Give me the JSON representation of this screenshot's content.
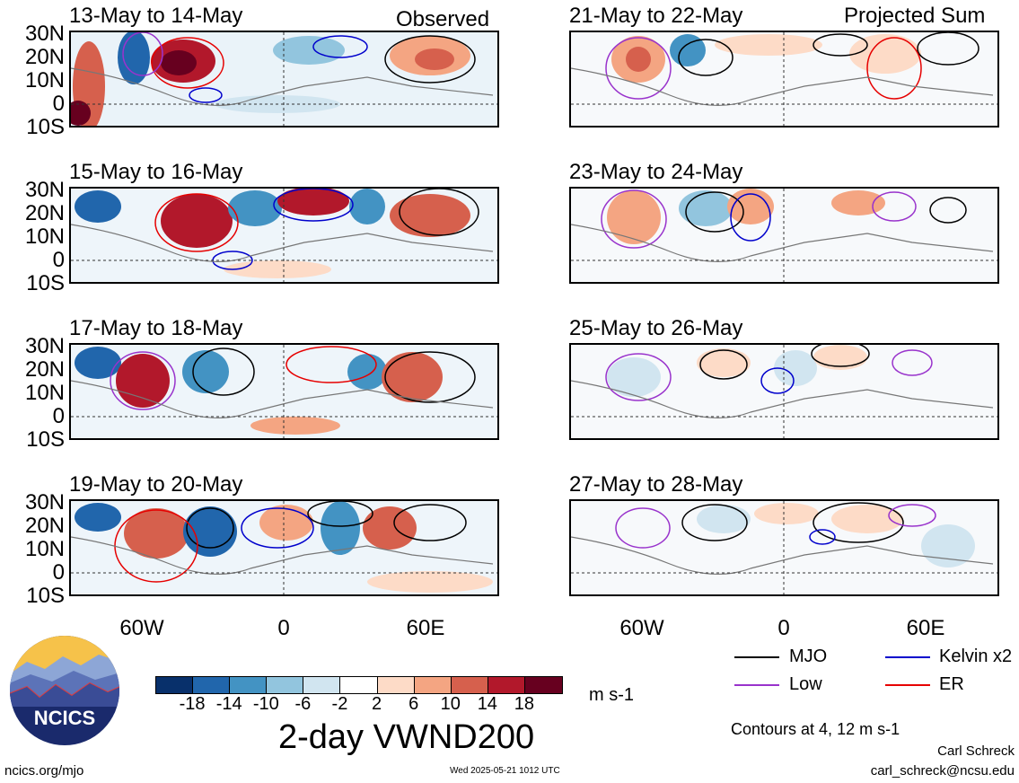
{
  "header": {
    "left": "Observed",
    "right": "Projected Sum"
  },
  "panels": [
    {
      "title": "13-May to 14-May"
    },
    {
      "title": "15-May to 16-May"
    },
    {
      "title": "17-May to 18-May"
    },
    {
      "title": "19-May to 20-May"
    },
    {
      "title": "21-May to 22-May"
    },
    {
      "title": "23-May to 24-May"
    },
    {
      "title": "25-May to 26-May"
    },
    {
      "title": "27-May to 28-May"
    }
  ],
  "lat_labels": [
    "30N",
    "20N",
    "10N",
    "0",
    "10S"
  ],
  "lon_labels": [
    "60W",
    "0",
    "60E"
  ],
  "colorbar": {
    "ticks": [
      "-18",
      "-14",
      "-10",
      "-6",
      "-2",
      "2",
      "6",
      "10",
      "14",
      "18"
    ],
    "colors": [
      "#08306b",
      "#2166ac",
      "#4393c3",
      "#92c5de",
      "#d1e5f0",
      "#ffffff",
      "#fddbc7",
      "#f4a582",
      "#d6604d",
      "#b2182b",
      "#67001f"
    ],
    "units": "m s-1"
  },
  "main_title": "2-day VWND200",
  "legend": {
    "items": [
      {
        "label": "MJO",
        "color": "#000000"
      },
      {
        "label": "Kelvin x2",
        "color": "#0000cc"
      },
      {
        "label": "Low",
        "color": "#9933cc"
      },
      {
        "label": "ER",
        "color": "#e60000"
      }
    ],
    "contours_note": "Contours at 4, 12 m s-1"
  },
  "logo": {
    "text": "NCICS"
  },
  "footer": {
    "url": "ncics.org/mjo",
    "timestamp": "Wed 2025-05-21 1012 UTC",
    "author": "Carl Schreck",
    "email": "carl_schreck@ncsu.edu"
  }
}
